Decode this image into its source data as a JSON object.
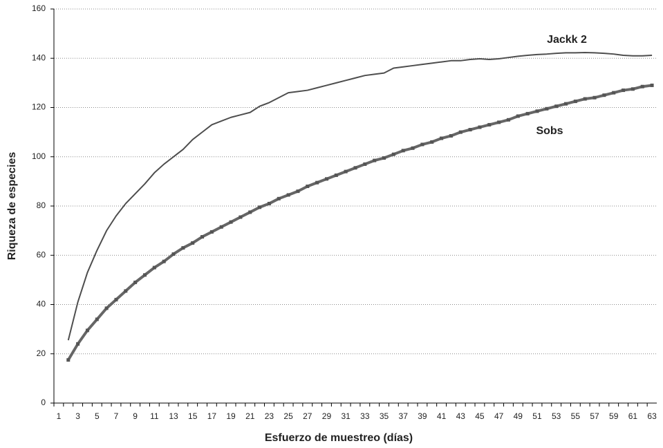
{
  "chart_data": {
    "type": "line",
    "x_label": "Esfuerzo de muestreo (días)",
    "y_label": "Riqueza de especies",
    "categories": [
      "1",
      null,
      "3",
      null,
      "5",
      null,
      "7",
      null,
      "9",
      null,
      "11",
      null,
      "13",
      null,
      "15",
      null,
      "17",
      null,
      "19",
      null,
      "21",
      null,
      "23",
      null,
      "25",
      null,
      "27",
      null,
      "29",
      null,
      "31",
      null,
      "33",
      null,
      "35",
      null,
      "37",
      null,
      "39",
      null,
      "41",
      null,
      "43",
      null,
      "45",
      null,
      "47",
      null,
      "49",
      null,
      "51",
      null,
      "53",
      null,
      "55",
      null,
      "57",
      null,
      "59",
      null,
      "61",
      null,
      "63"
    ],
    "series": [
      {
        "name": "Jackk 2",
        "color": "#4d4d4d",
        "values": [
          null,
          25.5,
          41,
          53,
          62,
          70,
          76,
          81,
          85,
          89,
          93.5,
          97,
          100,
          103,
          107,
          110,
          113,
          114.5,
          116,
          117,
          118,
          120.5,
          122,
          124,
          126,
          126.5,
          127,
          128,
          129,
          130,
          131,
          132,
          133,
          133.5,
          134,
          136,
          136.5,
          137,
          137.5,
          138,
          138.5,
          139,
          139,
          139.5,
          139.8,
          139.5,
          139.8,
          140.3,
          140.8,
          141.2,
          141.5,
          141.7,
          142,
          142.2,
          142.2,
          142.3,
          142.2,
          142,
          141.7,
          141.2,
          141,
          141,
          141.2
        ]
      },
      {
        "name": "Sobs",
        "color": "#666666",
        "values": [
          null,
          17.5,
          24,
          29.5,
          34,
          38.5,
          42,
          45.5,
          49,
          52,
          55,
          57.5,
          60.5,
          63,
          65,
          67.5,
          69.5,
          71.5,
          73.5,
          75.5,
          77.5,
          79.5,
          81,
          83,
          84.5,
          86,
          88,
          89.5,
          91,
          92.5,
          94,
          95.5,
          97,
          98.5,
          99.5,
          101,
          102.5,
          103.5,
          105,
          106,
          107.5,
          108.5,
          110,
          111,
          112,
          113,
          114,
          115,
          116.5,
          117.5,
          118.5,
          119.5,
          120.5,
          121.5,
          122.5,
          123.5,
          124,
          125,
          126,
          127,
          127.5,
          128.5,
          129
        ]
      }
    ],
    "ylim": [
      0,
      160
    ],
    "yticks": [
      0,
      20,
      40,
      60,
      80,
      100,
      120,
      140,
      160
    ],
    "grid": true
  }
}
